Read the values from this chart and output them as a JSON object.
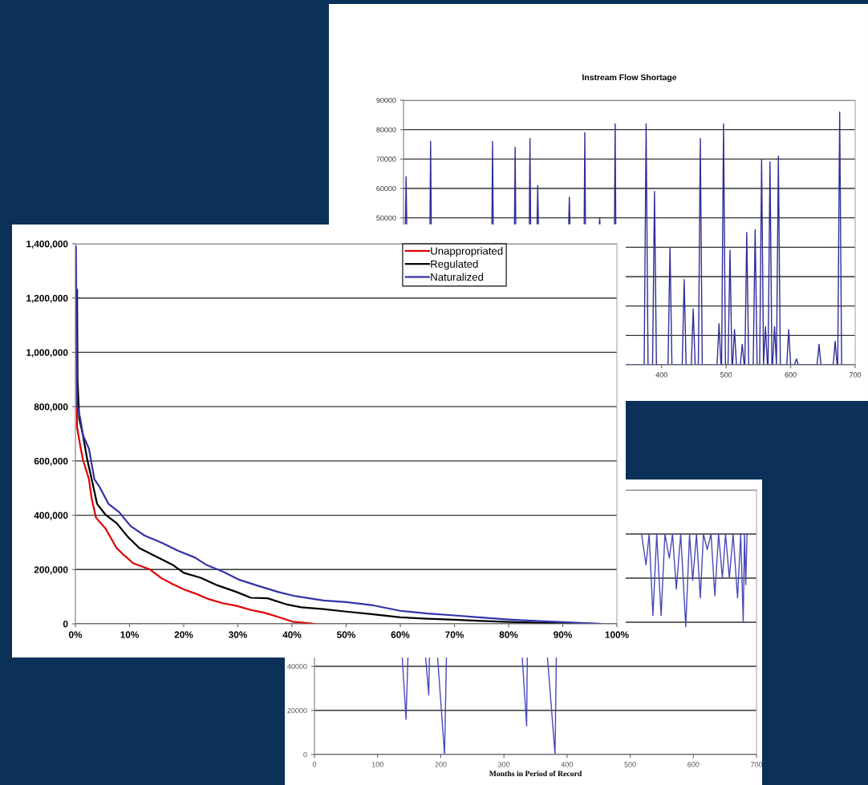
{
  "chart_data": [
    {
      "type": "line",
      "title": "Instream Flow Shortage",
      "xlim": [
        0,
        700
      ],
      "ylim": [
        0,
        90000
      ],
      "xticks": [
        {
          "value": 0,
          "label": null
        },
        {
          "value": 100,
          "label": null
        },
        {
          "value": 200,
          "label": null
        },
        {
          "value": 300,
          "label": null
        },
        400,
        500,
        600,
        700
      ],
      "yticks": [
        {
          "value": 0,
          "label": null
        },
        {
          "value": 10000,
          "label": null
        },
        {
          "value": 20000,
          "label": null
        },
        {
          "value": 30000,
          "label": null
        },
        {
          "value": 40000,
          "label": null
        },
        50000,
        60000,
        70000,
        80000,
        90000
      ],
      "grid": "y",
      "marker": "none",
      "series": [
        {
          "color": "#2e2e9a",
          "x": [
            3,
            4,
            5,
            null,
            41,
            42,
            43,
            null,
            137,
            138,
            139,
            null,
            172,
            173,
            174,
            null,
            195,
            196,
            197,
            null,
            207,
            208,
            209,
            null,
            256,
            257,
            258,
            null,
            280,
            281,
            282,
            null,
            303.5,
            304,
            304.5,
            null,
            327,
            328,
            329,
            null,
            345,
            373,
            376,
            379,
            386,
            389,
            392,
            410,
            413,
            416,
            432,
            435,
            438,
            446,
            449,
            452,
            457,
            460,
            463,
            486,
            489,
            492,
            493,
            496,
            499,
            503,
            506,
            509,
            510,
            513,
            516,
            522,
            525,
            528,
            529,
            532,
            535,
            542,
            545,
            548,
            552,
            555,
            558,
            558,
            561,
            564,
            565,
            568,
            571,
            572,
            575,
            578,
            578,
            581,
            584,
            594,
            597,
            600,
            606,
            609,
            612,
            641,
            644,
            647,
            666,
            669,
            672,
            673,
            676,
            679
          ],
          "values": [
            48000,
            64000,
            48000,
            null,
            48000,
            76000,
            48000,
            null,
            48000,
            76000,
            48000,
            null,
            48000,
            74000,
            48000,
            null,
            48000,
            77000,
            48000,
            null,
            48000,
            61000,
            48000,
            null,
            48000,
            57000,
            48000,
            null,
            48000,
            79000,
            48000,
            null,
            48000,
            50000,
            48000,
            null,
            48000,
            82000,
            48000,
            null,
            0,
            0,
            82000,
            0,
            0,
            59000,
            0,
            0,
            40000,
            0,
            0,
            29000,
            0,
            0,
            19000,
            0,
            0,
            77000,
            0,
            0,
            14000,
            0,
            0,
            82000,
            0,
            0,
            39000,
            0,
            0,
            12000,
            0,
            0,
            7000,
            0,
            0,
            45000,
            0,
            0,
            46000,
            0,
            0,
            70000,
            0,
            0,
            13000,
            0,
            0,
            69000,
            0,
            0,
            13000,
            0,
            0,
            71000,
            0,
            0,
            12000,
            0,
            0,
            2000,
            0,
            0,
            7000,
            0,
            0,
            8000,
            0,
            0,
            86000,
            0
          ]
        }
      ]
    },
    {
      "type": "line",
      "xlim": [
        0,
        100
      ],
      "ylim": [
        0,
        1400000
      ],
      "xticks": [
        {
          "value": 0,
          "label": "0%"
        },
        {
          "value": 10,
          "label": "10%"
        },
        {
          "value": 20,
          "label": "20%"
        },
        {
          "value": 30,
          "label": "30%"
        },
        {
          "value": 40,
          "label": "40%"
        },
        {
          "value": 50,
          "label": "50%"
        },
        {
          "value": 60,
          "label": "60%"
        },
        {
          "value": 70,
          "label": "70%"
        },
        {
          "value": 80,
          "label": "80%"
        },
        {
          "value": 90,
          "label": "90%"
        },
        {
          "value": 100,
          "label": "100%"
        }
      ],
      "yticks": [
        0,
        {
          "value": 200000,
          "label": "200,000"
        },
        {
          "value": 400000,
          "label": "400,000"
        },
        {
          "value": 600000,
          "label": "600,000"
        },
        {
          "value": 800000,
          "label": "800,000"
        },
        {
          "value": 1000000,
          "label": "1,000,000"
        },
        {
          "value": 1200000,
          "label": "1,200,000"
        },
        {
          "value": 1400000,
          "label": "1,400,000"
        }
      ],
      "grid": "y",
      "legend": "top",
      "marker": "none",
      "series": [
        {
          "name": "Unappropriated",
          "color": "#e00000",
          "x": [
            0.2,
            0.3,
            0.9,
            1.4,
            2.5,
            3.0,
            3.8,
            5.6,
            7.6,
            9.2,
            10.7,
            13.8,
            15.9,
            17.9,
            20.0,
            22.1,
            24.6,
            27.2,
            29.8,
            32.4,
            34.9,
            37.5,
            40.1,
            44.2
          ],
          "values": [
            1230000,
            726000,
            655000,
            604000,
            533000,
            462000,
            391000,
            350000,
            279000,
            249000,
            223000,
            200000,
            168000,
            147000,
            127000,
            112000,
            91000,
            76000,
            66000,
            51000,
            41000,
            25000,
            8000,
            0
          ]
        },
        {
          "name": "Regulated",
          "color": "#000000",
          "x": [
            0.3,
            0.4,
            0.7,
            1.4,
            2.2,
            3.0,
            4.0,
            5.6,
            7.6,
            9.7,
            11.8,
            14.8,
            17.9,
            20.0,
            23.1,
            26.2,
            29.8,
            32.4,
            35.5,
            39.1,
            41.7,
            45.8,
            50,
            55,
            60,
            65,
            70,
            75,
            80,
            85,
            90,
            97
          ],
          "values": [
            1230000,
            898000,
            756000,
            695000,
            604000,
            533000,
            442000,
            401000,
            371000,
            320000,
            279000,
            249000,
            218000,
            188000,
            170000,
            142000,
            117000,
            96000,
            94000,
            71000,
            61000,
            54000,
            45000,
            35000,
            24000,
            19000,
            15000,
            11000,
            7000,
            4000,
            2000,
            0
          ]
        },
        {
          "name": "Naturalized",
          "color": "#3333aa",
          "x": [
            0.1,
            0.3,
            0.9,
            1.4,
            2.5,
            3.5,
            4.5,
            6.1,
            8.1,
            10.2,
            12.8,
            15.9,
            19.0,
            22.1,
            24.1,
            27.2,
            30.3,
            33.4,
            37.5,
            40.6,
            45.8,
            50,
            55,
            60,
            65,
            70,
            75,
            80,
            85,
            90,
            97
          ],
          "values": [
            1390000,
            807000,
            756000,
            695000,
            645000,
            533000,
            503000,
            442000,
            411000,
            360000,
            325000,
            299000,
            269000,
            244000,
            218000,
            193000,
            162000,
            142000,
            117000,
            102000,
            86000,
            80000,
            68000,
            48000,
            38000,
            31000,
            23000,
            16000,
            11000,
            6000,
            0
          ]
        }
      ]
    },
    {
      "type": "line",
      "xlabel": "Months in Period of Record",
      "xlim": [
        0,
        700
      ],
      "ylim": [
        0,
        120000
      ],
      "xticks": [
        0,
        100,
        200,
        300,
        400,
        500,
        600,
        700
      ],
      "yticks": [
        0,
        20000,
        40000,
        {
          "value": 60000,
          "label": null
        },
        {
          "value": 80000,
          "label": null
        },
        {
          "value": 100000,
          "label": null
        },
        {
          "value": 120000,
          "label": null
        }
      ],
      "grid": "y",
      "marker": "none",
      "series": [
        {
          "color": "#4848b8",
          "x": [
            139,
            145,
            148,
            null,
            176,
            181,
            182,
            null,
            195,
            206,
            209,
            null,
            329,
            336,
            337,
            null,
            369,
            381,
            383,
            null,
            518,
            525,
            530,
            536,
            542,
            549,
            555,
            562,
            567,
            573,
            580,
            588,
            594,
            599,
            605,
            611,
            616,
            622,
            628,
            634,
            640,
            646,
            651,
            657,
            663,
            670,
            675,
            679,
            681,
            683,
            685
          ],
          "values": [
            44000,
            16000,
            44000,
            null,
            44000,
            27000,
            44000,
            null,
            44000,
            0,
            44000,
            null,
            44000,
            13000,
            44000,
            null,
            44000,
            0,
            44000,
            null,
            100000,
            86000,
            100000,
            63000,
            100000,
            63000,
            100000,
            89000,
            100000,
            75000,
            100000,
            58000,
            100000,
            79000,
            100000,
            71000,
            100000,
            93000,
            100000,
            72000,
            100000,
            80000,
            100000,
            80000,
            100000,
            71000,
            100000,
            60000,
            100000,
            77000,
            100000
          ]
        }
      ]
    }
  ]
}
